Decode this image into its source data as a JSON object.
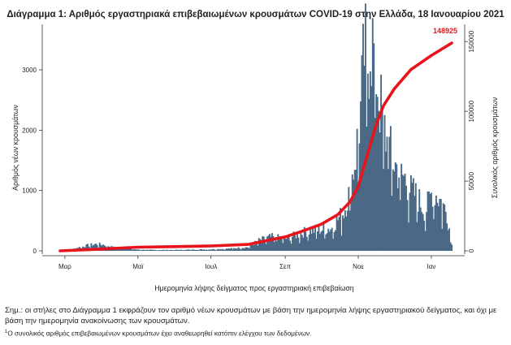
{
  "chart_data": {
    "type": "bar+line",
    "title": "Διάγραμμα 1: Αριθμός εργαστηριακά επιβεβαιωμένων κρουσμάτων COVID-19 στην Ελλάδα, 18 Ιανουαρίου 2021",
    "xlabel": "Ημερομηνία λήψης δείγματος προς εργαστηριακή επιβεβαίωση",
    "ylabel_left": "Αριθμός νέων κρουσμάτων",
    "ylabel_right": "Συνολικός αριθμός κρουσμάτων",
    "y_left_ticks": [
      0,
      1000,
      2000,
      3000
    ],
    "y_left_range": [
      0,
      3700
    ],
    "y_right_ticks": [
      0,
      50000,
      100000,
      150000
    ],
    "y_right_range": [
      0,
      160000
    ],
    "x_ticks": [
      "Μαρ",
      "Μαϊ",
      "Ιουλ",
      "Σεπ",
      "Νοε",
      "Ιαν"
    ],
    "x_range": [
      "2020-02-26",
      "2021-01-18"
    ],
    "grid": false,
    "series": [
      {
        "kind": "bar",
        "color": "#4a6986",
        "daily_points": [
          [
            "2020-02-26",
            0
          ],
          [
            "2020-03-05",
            10
          ],
          [
            "2020-03-12",
            55
          ],
          [
            "2020-03-20",
            90
          ],
          [
            "2020-03-27",
            110
          ],
          [
            "2020-04-03",
            100
          ],
          [
            "2020-04-10",
            60
          ],
          [
            "2020-04-20",
            40
          ],
          [
            "2020-05-01",
            20
          ],
          [
            "2020-05-15",
            15
          ],
          [
            "2020-06-01",
            15
          ],
          [
            "2020-06-15",
            20
          ],
          [
            "2020-07-01",
            25
          ],
          [
            "2020-07-15",
            35
          ],
          [
            "2020-07-25",
            50
          ],
          [
            "2020-08-01",
            60
          ],
          [
            "2020-08-10",
            170
          ],
          [
            "2020-08-20",
            230
          ],
          [
            "2020-09-01",
            200
          ],
          [
            "2020-09-10",
            260
          ],
          [
            "2020-09-20",
            330
          ],
          [
            "2020-10-01",
            350
          ],
          [
            "2020-10-10",
            380
          ],
          [
            "2020-10-15",
            520
          ],
          [
            "2020-10-20",
            650
          ],
          [
            "2020-10-25",
            1000
          ],
          [
            "2020-10-30",
            1600
          ],
          [
            "2020-11-03",
            2300
          ],
          [
            "2020-11-06",
            3300
          ],
          [
            "2020-11-09",
            3100
          ],
          [
            "2020-11-11",
            3600
          ],
          [
            "2020-11-13",
            3400
          ],
          [
            "2020-11-16",
            3000
          ],
          [
            "2020-11-18",
            2600
          ],
          [
            "2020-11-21",
            2200
          ],
          [
            "2020-11-25",
            1800
          ],
          [
            "2020-11-30",
            1500
          ],
          [
            "2020-12-05",
            1300
          ],
          [
            "2020-12-10",
            1200
          ],
          [
            "2020-12-15",
            1000
          ],
          [
            "2020-12-20",
            900
          ],
          [
            "2020-12-27",
            650
          ],
          [
            "2021-01-02",
            1000
          ],
          [
            "2021-01-06",
            900
          ],
          [
            "2021-01-10",
            800
          ],
          [
            "2021-01-14",
            600
          ],
          [
            "2021-01-18",
            150
          ]
        ]
      },
      {
        "kind": "line",
        "color": "#e8141c",
        "points": [
          [
            "2020-02-26",
            0
          ],
          [
            "2020-04-01",
            1300
          ],
          [
            "2020-05-01",
            2600
          ],
          [
            "2020-06-01",
            3000
          ],
          [
            "2020-07-01",
            3500
          ],
          [
            "2020-08-01",
            4600
          ],
          [
            "2020-08-20",
            8000
          ],
          [
            "2020-09-01",
            10000
          ],
          [
            "2020-09-15",
            14000
          ],
          [
            "2020-10-01",
            19000
          ],
          [
            "2020-10-15",
            26000
          ],
          [
            "2020-10-25",
            35000
          ],
          [
            "2020-11-01",
            46000
          ],
          [
            "2020-11-08",
            67000
          ],
          [
            "2020-11-15",
            88000
          ],
          [
            "2020-11-22",
            104000
          ],
          [
            "2020-12-01",
            116000
          ],
          [
            "2020-12-15",
            130000
          ],
          [
            "2021-01-01",
            140000
          ],
          [
            "2021-01-18",
            148925
          ]
        ]
      }
    ],
    "final_cumulative_label": "148925"
  },
  "note": "Σημ.: οι στήλες στο Διάγραμμα 1 εκφράζουν τον αριθμό νέων κρουσμάτων με βάση την ημερομηνία λήψης εργαστηριακού δείγματος, και όχι με βάση την ημερομηνία ανακοίνωσης των κρουσμάτων.",
  "footnote_mark": "1",
  "footnote": "Ο συνολικός αριθμός επιβεβαιωμένων κρουσμάτων έχει αναθεωρηθεί κατόπιν ελέγχου των δεδομένων."
}
